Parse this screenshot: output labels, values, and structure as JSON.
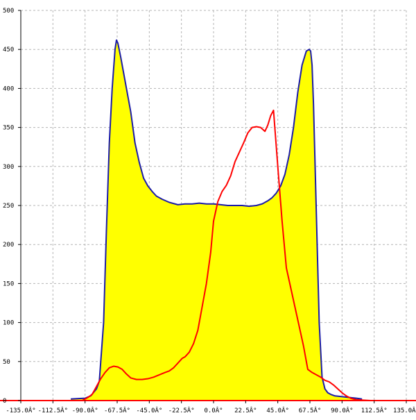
{
  "chart_data": {
    "type": "area",
    "title": "",
    "xlabel": "",
    "ylabel": "",
    "xlim": [
      -135,
      135
    ],
    "ylim": [
      0,
      500
    ],
    "grid": true,
    "x_ticks": [
      -135,
      -112.5,
      -90,
      -67.5,
      -45,
      -22.5,
      0,
      22.5,
      45,
      67.5,
      90,
      112.5,
      135
    ],
    "x_tick_labels": [
      "-135.0Â°",
      "-112.5Â°",
      "-90.0Â°",
      "-67.5Â°",
      "-45.0Â°",
      "-22.5Â°",
      "0.0Â°",
      "22.5Â°",
      "45.0Â°",
      "67.5Â°",
      "90.0Â°",
      "112.5Â°",
      "135.0Â°"
    ],
    "y_ticks": [
      0,
      50,
      100,
      150,
      200,
      250,
      300,
      350,
      400,
      450,
      500
    ],
    "y_tick_labels": [
      "0",
      "50",
      "100",
      "150",
      "200",
      "250",
      "300",
      "350",
      "400",
      "450",
      "500"
    ],
    "series": [
      {
        "color": "#1a1aa8",
        "fill": "#ffff00",
        "x": [
          -100,
          -90,
          -86,
          -82,
          -80,
          -77,
          -75,
          -73,
          -71,
          -69,
          -68,
          -67,
          -65,
          -63,
          -61,
          -58,
          -55,
          -52,
          -49,
          -46,
          -43,
          -40,
          -36,
          -31,
          -25,
          -20,
          -15,
          -10,
          -5,
          0,
          5,
          10,
          15,
          20,
          25,
          30,
          34,
          38,
          41,
          44,
          47,
          50,
          53,
          56,
          59,
          62,
          65,
          67,
          68,
          69,
          70,
          72,
          74,
          76,
          78,
          80,
          82,
          85,
          90,
          95,
          100,
          104
        ],
        "y": [
          2,
          3,
          6,
          15,
          25,
          100,
          220,
          330,
          400,
          450,
          462,
          458,
          440,
          420,
          400,
          370,
          330,
          305,
          285,
          275,
          268,
          262,
          258,
          254,
          251,
          252,
          252,
          253,
          252,
          252,
          251,
          250,
          250,
          250,
          249,
          250,
          252,
          256,
          260,
          266,
          275,
          290,
          315,
          350,
          395,
          430,
          448,
          450,
          448,
          430,
          380,
          240,
          100,
          30,
          15,
          10,
          8,
          6,
          5,
          4,
          3,
          2
        ]
      },
      {
        "color": "#ff0000",
        "x": [
          -135,
          -92,
          -90,
          -88,
          -85,
          -82,
          -79,
          -76,
          -73,
          -70,
          -67,
          -64,
          -61,
          -58,
          -54,
          -50,
          -46,
          -42,
          -38,
          -34,
          -31,
          -28,
          -25,
          -22,
          -20,
          -17,
          -14,
          -11,
          -8,
          -5,
          -2,
          0,
          3,
          6,
          9,
          12,
          15,
          18,
          21,
          24,
          27,
          30,
          33,
          36,
          38,
          40,
          42,
          45,
          48,
          51,
          54,
          57,
          60,
          63,
          66,
          69,
          72,
          75,
          78,
          81,
          84,
          87,
          90,
          93,
          96,
          100,
          110,
          135
        ],
        "y": [
          0,
          0,
          2,
          4,
          8,
          18,
          28,
          36,
          42,
          44,
          43,
          40,
          34,
          29,
          27,
          27,
          28,
          30,
          33,
          36,
          38,
          42,
          48,
          54,
          56,
          62,
          73,
          90,
          120,
          150,
          190,
          230,
          255,
          268,
          276,
          288,
          306,
          318,
          330,
          343,
          350,
          351,
          350,
          345,
          353,
          365,
          372,
          300,
          230,
          170,
          145,
          120,
          95,
          70,
          40,
          36,
          33,
          30,
          26,
          24,
          20,
          15,
          10,
          6,
          3,
          1,
          0,
          0
        ]
      }
    ]
  }
}
